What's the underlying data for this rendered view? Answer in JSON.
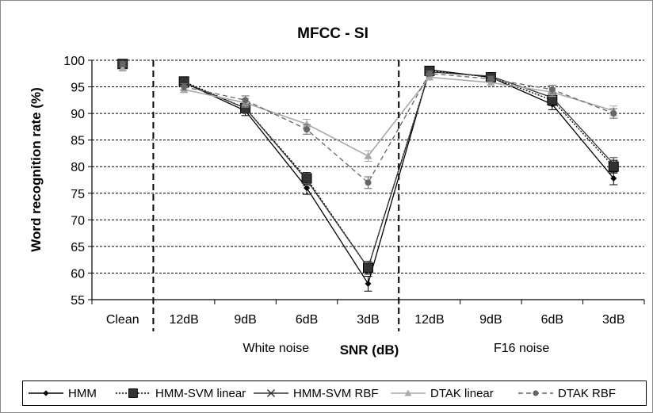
{
  "chart_data": {
    "type": "line",
    "title": "MFCC - SI",
    "ylabel": "Word recognition rate (%)",
    "xlabel": "SNR (dB)",
    "ylim": [
      55,
      100
    ],
    "yticks": [
      "55",
      "60",
      "65",
      "70",
      "75",
      "80",
      "85",
      "90",
      "95",
      "100"
    ],
    "categories": [
      "Clean",
      "12dB",
      "9dB",
      "6dB",
      "3dB",
      "12dB",
      "9dB",
      "6dB",
      "3dB"
    ],
    "groups": [
      {
        "label": "White noise",
        "categories": [
          1,
          4
        ]
      },
      {
        "label": "F16 noise",
        "categories": [
          5,
          8
        ]
      }
    ],
    "grid": "horizontal",
    "legend_position": "bottom",
    "series": [
      {
        "name": "HMM",
        "color": "#000000",
        "dash": "solid",
        "marker": "diamond",
        "values": [
          99.3,
          95.8,
          90.5,
          76,
          58,
          98.2,
          96.8,
          91.7,
          77.8
        ],
        "errors": [
          0.4,
          0.6,
          0.9,
          1.2,
          1.4,
          0.5,
          0.5,
          1,
          1.2
        ]
      },
      {
        "name": "HMM-SVM linear",
        "color": "#000000",
        "dash": "dotted",
        "marker": "square",
        "values": [
          99.3,
          96,
          91,
          77.8,
          61,
          98,
          96.8,
          92.5,
          80
        ],
        "errors": [
          0.4,
          0.6,
          0.9,
          1.1,
          1.2,
          0.5,
          0.5,
          1,
          1.2
        ]
      },
      {
        "name": "HMM-SVM RBF",
        "color": "#333333",
        "dash": "solid",
        "marker": "x",
        "values": [
          99.3,
          95.8,
          91,
          77.5,
          61,
          97.8,
          97,
          93,
          80.5
        ],
        "errors": [
          0.4,
          0.6,
          0.9,
          1.1,
          1.2,
          0.5,
          0.5,
          1,
          1.2
        ]
      },
      {
        "name": "DTAK linear",
        "color": "#aaaaaa",
        "dash": "solid",
        "marker": "triangle",
        "values": [
          98.5,
          94.5,
          92,
          88,
          82,
          96.8,
          95.8,
          94,
          90.5
        ],
        "errors": [
          0.4,
          0.6,
          0.8,
          0.9,
          1,
          0.5,
          0.5,
          0.8,
          0.9
        ]
      },
      {
        "name": "DTAK RBF",
        "color": "#666666",
        "dash": "dashed",
        "marker": "circle",
        "values": [
          99.3,
          95,
          92.5,
          87,
          77,
          97.5,
          96.5,
          94.5,
          90
        ],
        "errors": [
          0.4,
          0.6,
          0.8,
          0.9,
          1.1,
          0.5,
          0.5,
          0.8,
          0.9
        ]
      }
    ]
  }
}
